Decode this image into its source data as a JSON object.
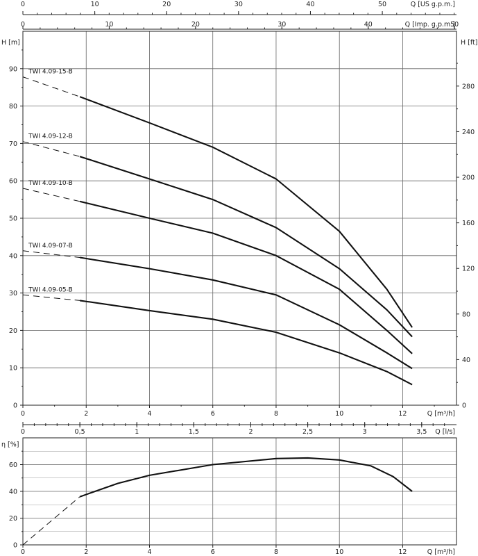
{
  "chart_data": {
    "type": "line",
    "axes": {
      "top_us": {
        "label": "Q [US g.p.m.]",
        "ticks": [
          0,
          10,
          20,
          30,
          40,
          50
        ],
        "per_m3h": 4.4029
      },
      "top_imp": {
        "label": "Q [Imp. g.p.m.]",
        "ticks": [
          0,
          10,
          20,
          30,
          40,
          50
        ],
        "per_m3h": 3.6662
      },
      "x": {
        "label": "Q [m³/h]",
        "ticks": [
          "0",
          "2",
          "4",
          "6",
          "8",
          "10",
          "12"
        ],
        "lim": [
          0,
          13.7
        ]
      },
      "x_ls": {
        "label": "Q [l/s]",
        "ticks": [
          "0",
          "0,5",
          "1",
          "1,5",
          "2",
          "2,5",
          "3",
          "3,5"
        ],
        "per_m3h": 0.27778
      },
      "y_m": {
        "label": "H [m]",
        "ticks": [
          0,
          10,
          20,
          30,
          40,
          50,
          60,
          70,
          80,
          90
        ],
        "lim": [
          0,
          100
        ]
      },
      "y_ft": {
        "label": "H [ft]",
        "ticks": [
          0,
          40,
          80,
          120,
          160,
          200,
          240,
          280
        ],
        "per_m": 3.28084
      },
      "y_eta": {
        "label": "η [%]",
        "ticks": [
          0,
          20,
          40,
          60
        ],
        "lim": [
          0,
          80
        ]
      },
      "grid": true
    },
    "head_series": [
      {
        "name": "TWI 4.09-15-B",
        "dashed": [
          [
            0,
            87.8
          ],
          [
            1.8,
            82.5
          ]
        ],
        "solid": [
          [
            1.8,
            82.5
          ],
          [
            4,
            75.5
          ],
          [
            6,
            69
          ],
          [
            8,
            60.5
          ],
          [
            10,
            46.5
          ],
          [
            11.5,
            31
          ],
          [
            12.3,
            20.8
          ]
        ]
      },
      {
        "name": "TWI 4.09-12-B",
        "dashed": [
          [
            0,
            70.5
          ],
          [
            1.8,
            66.5
          ]
        ],
        "solid": [
          [
            1.8,
            66.5
          ],
          [
            4,
            60.5
          ],
          [
            6,
            55
          ],
          [
            8,
            47.5
          ],
          [
            10,
            36.5
          ],
          [
            11.5,
            25.5
          ],
          [
            12.3,
            18.3
          ]
        ]
      },
      {
        "name": "TWI 4.09-10-B",
        "dashed": [
          [
            0,
            58
          ],
          [
            1.8,
            54.5
          ]
        ],
        "solid": [
          [
            1.8,
            54.5
          ],
          [
            4,
            50
          ],
          [
            6,
            46
          ],
          [
            8,
            40
          ],
          [
            10,
            31
          ],
          [
            11.5,
            20
          ],
          [
            12.3,
            13.8
          ]
        ]
      },
      {
        "name": "TWI 4.09-07-B",
        "dashed": [
          [
            0,
            41.3
          ],
          [
            1.8,
            39.5
          ]
        ],
        "solid": [
          [
            1.8,
            39.5
          ],
          [
            4,
            36.5
          ],
          [
            6,
            33.5
          ],
          [
            8,
            29.5
          ],
          [
            10,
            21.5
          ],
          [
            11.5,
            14
          ],
          [
            12.3,
            9.8
          ]
        ]
      },
      {
        "name": "TWI 4.09-05-B",
        "dashed": [
          [
            0,
            29.5
          ],
          [
            1.8,
            28
          ]
        ],
        "solid": [
          [
            1.8,
            28
          ],
          [
            4,
            25.3
          ],
          [
            6,
            23
          ],
          [
            8,
            19.5
          ],
          [
            10,
            14
          ],
          [
            11.5,
            9
          ],
          [
            12.3,
            5.5
          ]
        ]
      }
    ],
    "efficiency_series": {
      "dashed": [
        [
          0,
          0
        ],
        [
          1.8,
          36
        ]
      ],
      "solid": [
        [
          1.8,
          36
        ],
        [
          3,
          46
        ],
        [
          4,
          52
        ],
        [
          6,
          60
        ],
        [
          8,
          64.5
        ],
        [
          9,
          65
        ],
        [
          10,
          63.5
        ],
        [
          11,
          59
        ],
        [
          11.7,
          51
        ],
        [
          12.3,
          40
        ]
      ]
    }
  }
}
